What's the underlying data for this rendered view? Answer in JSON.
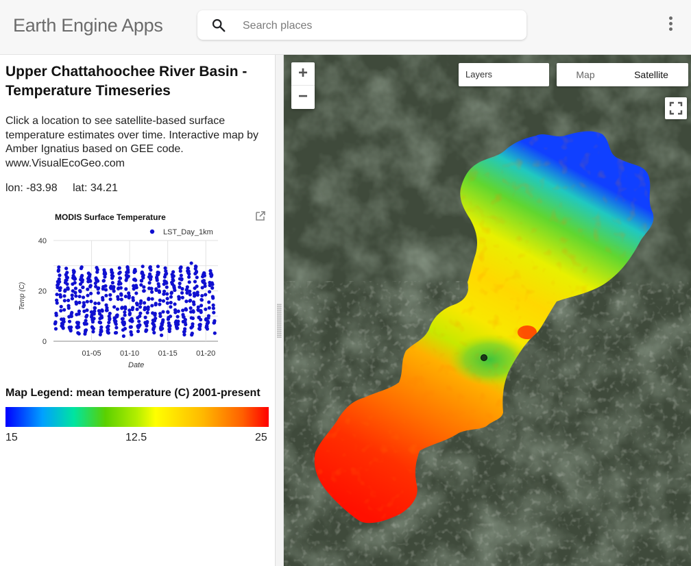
{
  "header": {
    "app_title": "Earth Engine Apps",
    "search_placeholder": "Search places",
    "search_icon": "search-icon",
    "menu_icon": "more-vert-icon"
  },
  "panel": {
    "title": "Upper Chattahoochee River Basin - Temperature Timeseries",
    "description": "Click a location to see satellite-based surface temperature estimates over time. Interactive map by Amber Ignatius based on GEE code. www.VisualEcoGeo.com",
    "lon_text": "lon: -83.98",
    "lat_text": "lat: 34.21"
  },
  "chart_data": {
    "type": "scatter",
    "title": "MODIS Surface Temperature",
    "xlabel": "Date",
    "ylabel": "Temp (C)",
    "ylim": [
      0,
      40
    ],
    "yticks": [
      "0",
      "20",
      "40"
    ],
    "xticks": [
      "01-05",
      "01-10",
      "01-15",
      "01-20"
    ],
    "x_unit": "year index (2001-01 = 0)",
    "xlim": [
      0,
      21.6
    ],
    "grid": true,
    "legend_position": "top-right",
    "series": [
      {
        "name": "LST_Day_1km",
        "color": "#1010d0",
        "annual_cycle": {
          "years": 21,
          "start_year_index": 0,
          "min_c": 5,
          "max_c": 27
        },
        "outliers": [
          {
            "x": 3.35,
            "y": 3
          },
          {
            "x": 6.3,
            "y": 4
          },
          {
            "x": 9.4,
            "y": 5
          },
          {
            "x": 18.1,
            "y": 31
          }
        ]
      }
    ]
  },
  "legend": {
    "title": "Map Legend: mean temperature (C) 2001-present",
    "min_label": "15",
    "mid_label": "12.5",
    "max_label": "25",
    "palette": [
      "#0000ff",
      "#00a0ff",
      "#00e4a0",
      "#5bd000",
      "#b4ee00",
      "#ffff00",
      "#ffb800",
      "#ff6000",
      "#ff0000"
    ]
  },
  "map": {
    "zoom_in": "+",
    "zoom_out": "−",
    "layers_label": "Layers",
    "map_label": "Map",
    "satellite_label": "Satellite",
    "selected_maptype": "Satellite",
    "fullscreen_icon": "fullscreen-icon",
    "base_color": "#3f4a3b"
  }
}
